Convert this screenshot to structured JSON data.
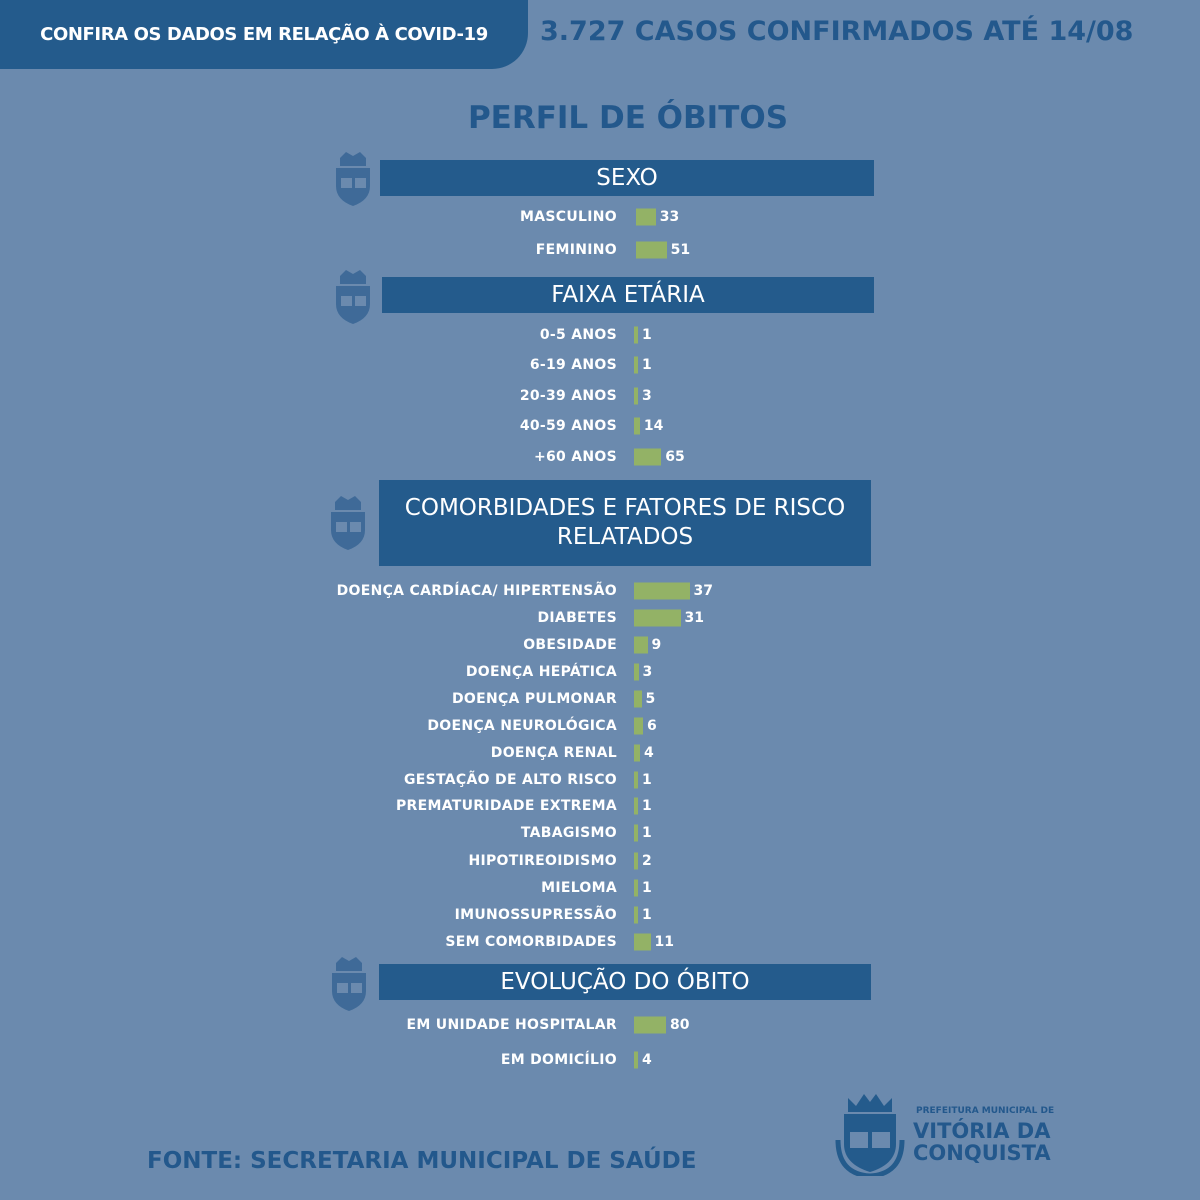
{
  "header": {
    "tab": "CONFIRA OS DADOS EM RELAÇÃO À COVID-19",
    "cases": "3.727 CASOS CONFIRMADOS ATÉ 14/08"
  },
  "title": "PERFIL DE ÓBITOS",
  "colors": {
    "background": "#6b8aae",
    "header": "#245b8c",
    "bar": "#93b266",
    "title_text": "#23588c"
  },
  "chart_data": [
    {
      "type": "bar",
      "orientation": "horizontal",
      "title": "SEXO",
      "categories": [
        "MASCULINO",
        "FEMININO"
      ],
      "values": [
        33,
        51
      ]
    },
    {
      "type": "bar",
      "orientation": "horizontal",
      "title": "FAIXA ETÁRIA",
      "categories": [
        "0-5 ANOS",
        "6-19 ANOS",
        "20-39 ANOS",
        "40-59 ANOS",
        "+60 ANOS"
      ],
      "values": [
        1,
        1,
        3,
        14,
        65
      ]
    },
    {
      "type": "bar",
      "orientation": "horizontal",
      "title": "COMORBIDADES E FATORES DE RISCO RELATADOS",
      "categories": [
        "DOENÇA CARDÍACA/ HIPERTENSÃO",
        "DIABETES",
        "OBESIDADE",
        "DOENÇA HEPÁTICA",
        "DOENÇA PULMONAR",
        "DOENÇA NEUROLÓGICA",
        "DOENÇA RENAL",
        "GESTAÇÃO DE ALTO RISCO",
        "PREMATURIDADE EXTREMA",
        "TABAGISMO",
        "HIPOTIREOIDISMO",
        "MIELOMA",
        "IMUNOSSUPRESSÃO",
        "SEM COMORBIDADES"
      ],
      "values": [
        37,
        31,
        9,
        3,
        5,
        6,
        4,
        1,
        1,
        1,
        2,
        1,
        1,
        11
      ]
    },
    {
      "type": "bar",
      "orientation": "horizontal",
      "title": "EVOLUÇÃO DO ÓBITO",
      "categories": [
        "EM UNIDADE HOSPITALAR",
        "EM DOMICÍLIO"
      ],
      "values": [
        80,
        4
      ]
    }
  ],
  "footer": {
    "source": "FONTE: SECRETARIA MUNICIPAL DE SAÚDE",
    "logo_line1": "PREFEITURA MUNICIPAL DE",
    "logo_line2": "VITÓRIA DA",
    "logo_line3": "CONQUISTA"
  }
}
